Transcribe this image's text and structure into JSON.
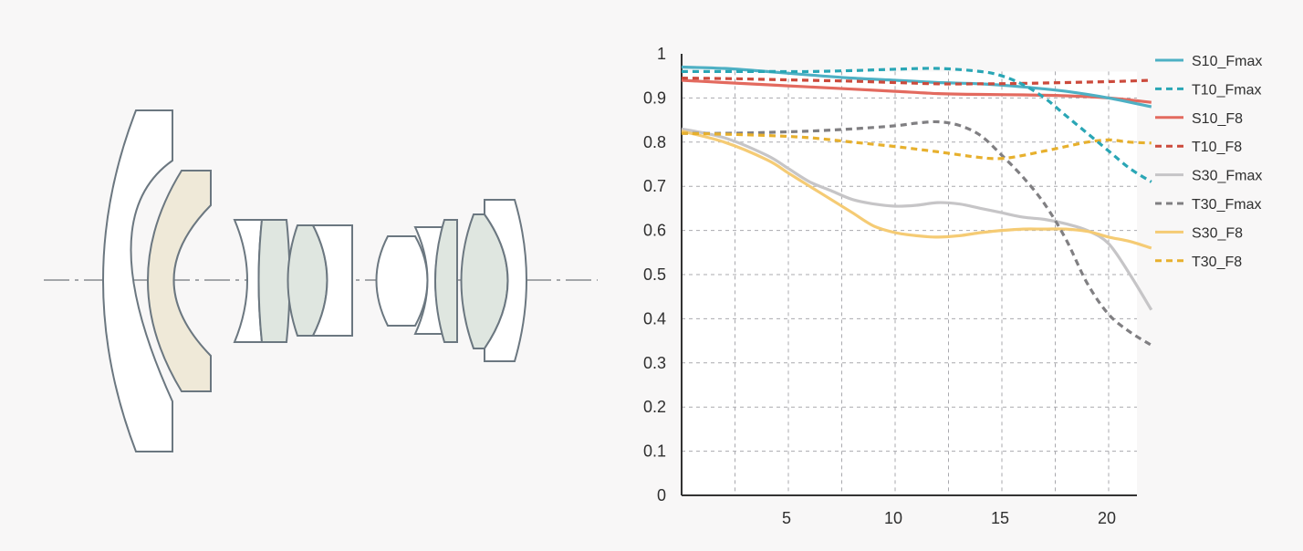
{
  "diagram": {
    "element_colors": {
      "outline": "#6b7780",
      "plain": "#ffffff",
      "tinted_green": "#dfe6e0",
      "tinted_beige": "#efe9d8",
      "axis": "#a4a7aa"
    }
  },
  "chart_data": {
    "type": "line",
    "title": "",
    "xlabel": "",
    "ylabel": "",
    "xlim": [
      0,
      22
    ],
    "ylim": [
      0,
      1
    ],
    "x_ticks": [
      5,
      10,
      15,
      20
    ],
    "y_ticks": [
      0,
      0.1,
      0.2,
      0.3,
      0.4,
      0.5,
      0.6,
      0.7,
      0.8,
      0.9,
      1
    ],
    "y_tick_labels": [
      "0",
      "0.1",
      "0.2",
      "0.3",
      "0.4",
      "0.5",
      "0.6",
      "0.7",
      "0.8",
      "0.9",
      "1"
    ],
    "grid": true,
    "legend_position": "right",
    "series": [
      {
        "name": "S10_Fmax",
        "color": "#4eb0c4",
        "style": "solid",
        "points": [
          [
            0,
            0.97
          ],
          [
            2,
            0.967
          ],
          [
            4,
            0.96
          ],
          [
            6,
            0.952
          ],
          [
            8,
            0.945
          ],
          [
            10,
            0.94
          ],
          [
            12,
            0.935
          ],
          [
            14,
            0.932
          ],
          [
            16,
            0.925
          ],
          [
            18,
            0.915
          ],
          [
            20,
            0.9
          ],
          [
            22,
            0.88
          ]
        ]
      },
      {
        "name": "T10_Fmax",
        "color": "#2aa6b5",
        "style": "dashed",
        "points": [
          [
            0,
            0.96
          ],
          [
            2,
            0.96
          ],
          [
            4,
            0.96
          ],
          [
            6,
            0.96
          ],
          [
            8,
            0.962
          ],
          [
            10,
            0.965
          ],
          [
            12,
            0.967
          ],
          [
            14,
            0.96
          ],
          [
            15,
            0.95
          ],
          [
            16,
            0.93
          ],
          [
            17,
            0.9
          ],
          [
            18,
            0.86
          ],
          [
            19,
            0.82
          ],
          [
            20,
            0.78
          ],
          [
            21,
            0.74
          ],
          [
            22,
            0.71
          ]
        ]
      },
      {
        "name": "S10_F8",
        "color": "#e36a5f",
        "style": "solid",
        "points": [
          [
            0,
            0.94
          ],
          [
            2,
            0.935
          ],
          [
            4,
            0.93
          ],
          [
            6,
            0.925
          ],
          [
            8,
            0.92
          ],
          [
            10,
            0.915
          ],
          [
            12,
            0.91
          ],
          [
            14,
            0.908
          ],
          [
            16,
            0.907
          ],
          [
            18,
            0.905
          ],
          [
            20,
            0.9
          ],
          [
            22,
            0.89
          ]
        ]
      },
      {
        "name": "T10_F8",
        "color": "#cc4a3c",
        "style": "dashed",
        "points": [
          [
            0,
            0.945
          ],
          [
            2,
            0.944
          ],
          [
            4,
            0.942
          ],
          [
            6,
            0.94
          ],
          [
            8,
            0.938
          ],
          [
            10,
            0.935
          ],
          [
            12,
            0.932
          ],
          [
            14,
            0.932
          ],
          [
            16,
            0.933
          ],
          [
            18,
            0.935
          ],
          [
            20,
            0.937
          ],
          [
            22,
            0.94
          ]
        ]
      },
      {
        "name": "S30_Fmax",
        "color": "#c6c5c7",
        "style": "solid",
        "points": [
          [
            0,
            0.83
          ],
          [
            2,
            0.81
          ],
          [
            4,
            0.77
          ],
          [
            5,
            0.74
          ],
          [
            6,
            0.71
          ],
          [
            7,
            0.69
          ],
          [
            8,
            0.67
          ],
          [
            9,
            0.66
          ],
          [
            10,
            0.655
          ],
          [
            11,
            0.657
          ],
          [
            12,
            0.663
          ],
          [
            13,
            0.66
          ],
          [
            14,
            0.65
          ],
          [
            15,
            0.64
          ],
          [
            16,
            0.63
          ],
          [
            17,
            0.625
          ],
          [
            18,
            0.615
          ],
          [
            19,
            0.6
          ],
          [
            20,
            0.57
          ],
          [
            21,
            0.5
          ],
          [
            22,
            0.42
          ]
        ]
      },
      {
        "name": "T30_Fmax",
        "color": "#807f82",
        "style": "dashed",
        "points": [
          [
            0,
            0.82
          ],
          [
            2,
            0.82
          ],
          [
            4,
            0.822
          ],
          [
            6,
            0.825
          ],
          [
            8,
            0.83
          ],
          [
            10,
            0.837
          ],
          [
            11,
            0.843
          ],
          [
            12,
            0.846
          ],
          [
            13,
            0.838
          ],
          [
            14,
            0.815
          ],
          [
            15,
            0.77
          ],
          [
            16,
            0.72
          ],
          [
            17,
            0.66
          ],
          [
            18,
            0.58
          ],
          [
            19,
            0.48
          ],
          [
            20,
            0.41
          ],
          [
            21,
            0.37
          ],
          [
            22,
            0.34
          ]
        ]
      },
      {
        "name": "S30_F8",
        "color": "#f5cb74",
        "style": "solid",
        "points": [
          [
            0,
            0.825
          ],
          [
            2,
            0.8
          ],
          [
            4,
            0.76
          ],
          [
            5,
            0.73
          ],
          [
            6,
            0.7
          ],
          [
            7,
            0.67
          ],
          [
            8,
            0.64
          ],
          [
            9,
            0.61
          ],
          [
            10,
            0.595
          ],
          [
            11,
            0.588
          ],
          [
            12,
            0.585
          ],
          [
            13,
            0.588
          ],
          [
            14,
            0.595
          ],
          [
            15,
            0.6
          ],
          [
            16,
            0.603
          ],
          [
            17,
            0.603
          ],
          [
            18,
            0.603
          ],
          [
            19,
            0.598
          ],
          [
            20,
            0.585
          ],
          [
            21,
            0.575
          ],
          [
            22,
            0.56
          ]
        ]
      },
      {
        "name": "T30_F8",
        "color": "#e7b02d",
        "style": "dashed",
        "points": [
          [
            0,
            0.82
          ],
          [
            2,
            0.818
          ],
          [
            4,
            0.815
          ],
          [
            6,
            0.81
          ],
          [
            8,
            0.8
          ],
          [
            10,
            0.79
          ],
          [
            12,
            0.778
          ],
          [
            14,
            0.765
          ],
          [
            15,
            0.763
          ],
          [
            16,
            0.77
          ],
          [
            17,
            0.78
          ],
          [
            18,
            0.79
          ],
          [
            19,
            0.8
          ],
          [
            20,
            0.805
          ],
          [
            21,
            0.8
          ],
          [
            22,
            0.798
          ]
        ]
      }
    ]
  }
}
